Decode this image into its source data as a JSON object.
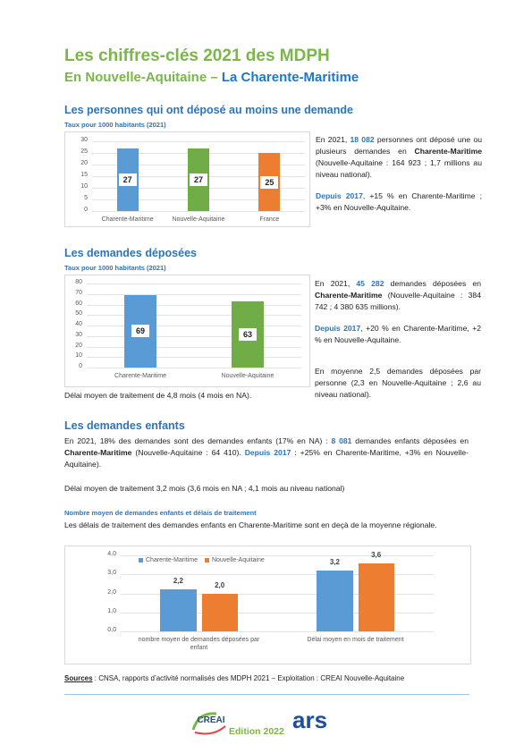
{
  "document": {
    "header": {
      "title": "Les chiffres-clés 2021 des MDPH",
      "subtitle": [
        {
          "text": "En Nouvelle-Aquitaine – ",
          "color": "#7ab648"
        },
        {
          "text": "La Charente-Maritime",
          "color": "#1f78c8"
        }
      ]
    },
    "sections": [
      {
        "heading": "Les personnes qui ont déposé au moins une demande",
        "paragraphs": [
          [
            "En 2021, ",
            {
              "text": "18 082",
              "bold": true,
              "color": "#2e75b6"
            },
            " personnes ont déposé une ou plusieurs demandes en ",
            {
              "text": "Charente-Maritime",
              "bold": true
            },
            " (Nouvelle-Aquitaine : 164 923 ; 1,7 millions au niveau national)."
          ],
          [
            {
              "text": "Depuis 2017",
              "bold": true,
              "color": "#2e75b6"
            },
            ", +15 % en Charente-Maritime ; +3% en Nouvelle-Aquitaine."
          ]
        ]
      },
      {
        "heading": "Les demandes déposées",
        "paragraphs": [
          [
            "En 2021, ",
            {
              "text": "45 282",
              "bold": true,
              "color": "#2e75b6"
            },
            " demandes déposées en ",
            {
              "text": "Charente-Maritime",
              "bold": true
            },
            " (Nouvelle-Aquitaine : 384 742 ; 4 380 635 millions)."
          ],
          [
            {
              "text": "Depuis 2017",
              "bold": true,
              "color": "#2e75b6"
            },
            ", +20 % en Charente-Maritime, +2 % en Nouvelle-Aquitaine."
          ],
          [
            "En moyenne 2,5 demandes déposées par personne (2,3 en Nouvelle-Aquitaine ; 2,6 au niveau national)."
          ],
          [
            "Délai moyen de traitement de 4,8 mois (4 mois en NA)."
          ]
        ]
      },
      {
        "heading": "Les demandes enfants",
        "paragraphs": [
          [
            "En 2021, 18% des demandes sont des demandes enfants (17% en NA) : ",
            {
              "text": "8 081",
              "bold": true,
              "color": "#2e75b6"
            },
            " demandes enfants déposées en ",
            {
              "text": "Charente-Maritime",
              "bold": true
            },
            " (Nouvelle-Aquitaine : 64 410). ",
            {
              "text": "Depuis 2017",
              "bold": true,
              "color": "#2e75b6"
            },
            " : +25% en Charente-Maritime, +3% en Nouvelle-Aquitaine)."
          ],
          [
            "Délai moyen de traitement 3,2 mois (3,6 mois en NA ; 4,1 mois au niveau national)"
          ],
          [
            "Les délais de traitement des demandes enfants en Charente-Maritime sont en deçà de la moyenne régionale."
          ]
        ]
      }
    ],
    "footer": {
      "sources": [
        {
          "text": "Sources",
          "bold": true,
          "underline": true
        },
        " : CNSA, rapports d’activité normalisés des MDPH 2021 – Exploitation : CREAI Nouvelle-Aquitaine"
      ],
      "logo_left": "CREAI",
      "logo_right": "ars",
      "edition": "Edition 2022"
    }
  },
  "chart_data": [
    {
      "type": "bar",
      "subtitle": "Taux pour 1000 habitants (2021)",
      "categories": [
        "Charente-Maritime",
        "Nouvelle-Aquitaine",
        "France"
      ],
      "series": [
        {
          "values": [
            27,
            27,
            25
          ],
          "colors": [
            "#5b9bd5",
            "#70ad47",
            "#ed7d31"
          ]
        }
      ],
      "ylim": [
        0,
        30
      ],
      "yticks": [
        0,
        5,
        10,
        15,
        20,
        25,
        30
      ],
      "grid": true,
      "label_position": "inside"
    },
    {
      "type": "bar",
      "subtitle": "Taux pour 1000 habitants (2021)",
      "categories": [
        "Charente-Maritime",
        "Nouvelle-Aquitaine"
      ],
      "series": [
        {
          "values": [
            69,
            63
          ],
          "colors": [
            "#5b9bd5",
            "#70ad47"
          ]
        }
      ],
      "ylim": [
        0,
        80
      ],
      "yticks": [
        0,
        10,
        20,
        30,
        40,
        50,
        60,
        70,
        80
      ],
      "grid": true,
      "label_position": "inside"
    },
    {
      "type": "bar",
      "title": "Nombre moyen de demandes enfants et délais de traitement",
      "categories": [
        "nombre moyen de demandes déposées par enfant",
        "Délai moyen en mois de traitement"
      ],
      "series": [
        {
          "name": "Charente-Maritime",
          "color": "#5b9bd5",
          "values": [
            2.2,
            3.2
          ],
          "value_labels": [
            "2,2",
            "3,2"
          ]
        },
        {
          "name": "Nouvelle-Aquitaine",
          "color": "#ed7d31",
          "values": [
            2.0,
            3.6
          ],
          "value_labels": [
            "2,0",
            "3,6"
          ]
        }
      ],
      "ylim": [
        0,
        4
      ],
      "yticks": [
        {
          "value": 0,
          "label": "0,0"
        },
        {
          "value": 1,
          "label": "1,0"
        },
        {
          "value": 2,
          "label": "2,0"
        },
        {
          "value": 3,
          "label": "3,0"
        },
        {
          "value": 4,
          "label": "4,0"
        }
      ],
      "grid": true,
      "legend": "top-left",
      "label_position": "above"
    }
  ]
}
